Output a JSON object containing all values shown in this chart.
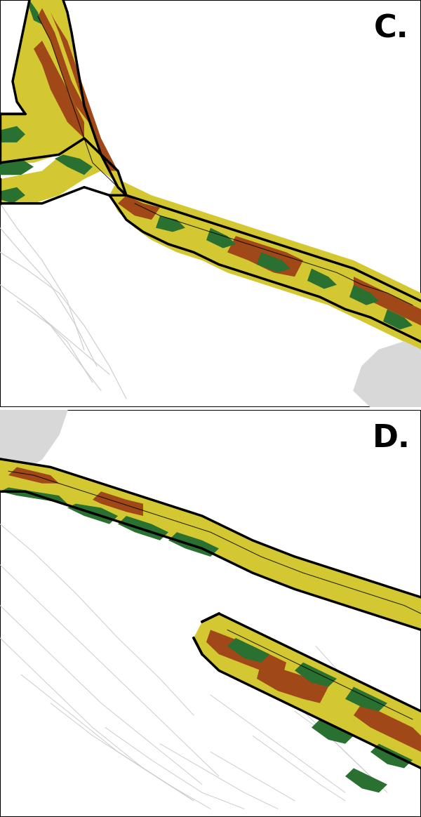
{
  "panel_C_label": "C.",
  "panel_D_label": "D.",
  "label_fontsize": 32,
  "label_fontweight": "bold",
  "colors": {
    "yellow": "#D4C832",
    "yellow_dark": "#B8A818",
    "olive": "#8C8010",
    "brown": "#A04818",
    "green": "#2A7030",
    "green2": "#1A6020",
    "gray": "#C0C0C0",
    "light_gray": "#D8D8D8",
    "watershed": "#CCCCCC",
    "black": "#000000",
    "white": "#ffffff"
  },
  "figsize": [
    6.0,
    11.64
  ],
  "dpi": 100
}
